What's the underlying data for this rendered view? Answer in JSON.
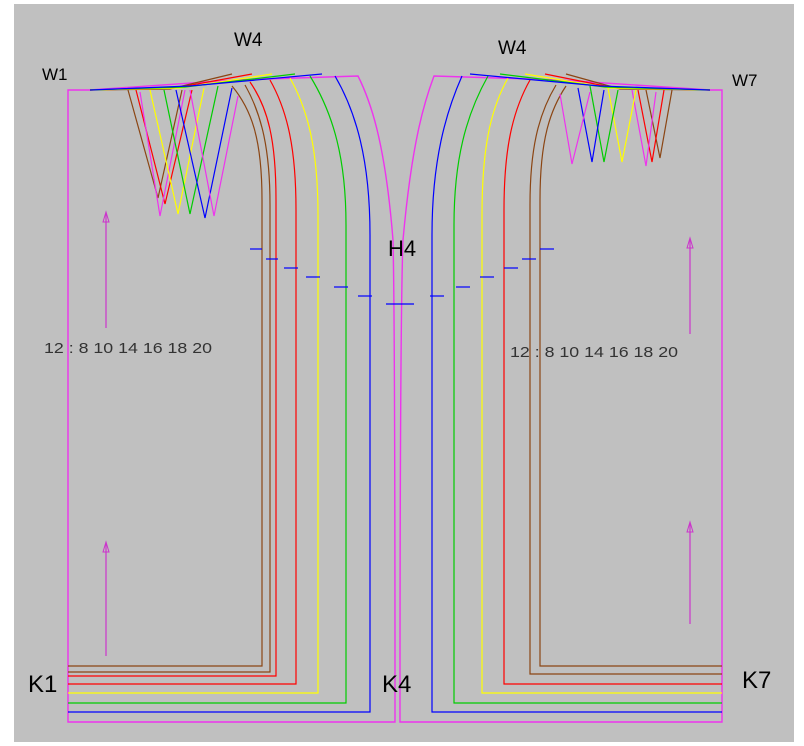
{
  "view": {
    "background": "#c0c0c0",
    "outline_color": "#ee33ee",
    "notch_color": "#0000ff",
    "grainline_color": "#cc33cc"
  },
  "labels": {
    "w1": "W1",
    "w4_left": "W4",
    "w4_right": "W4",
    "w7": "W7",
    "h4": "H4",
    "k1": "K1",
    "k4": "K4",
    "k7": "K7"
  },
  "size_captions": {
    "left": "12 : 8 10 14 16 18 20",
    "right": "12 : 8 10 14 16 18 20"
  },
  "sizes": [
    {
      "name": "8",
      "color": "#8b4513"
    },
    {
      "name": "10",
      "color": "#ff0000"
    },
    {
      "name": "12",
      "color": "#ee33ee"
    },
    {
      "name": "14",
      "color": "#ffff00"
    },
    {
      "name": "16",
      "color": "#00cc00"
    },
    {
      "name": "18",
      "color": "#0000ff"
    },
    {
      "name": "20",
      "color": "#ee33ee"
    }
  ]
}
